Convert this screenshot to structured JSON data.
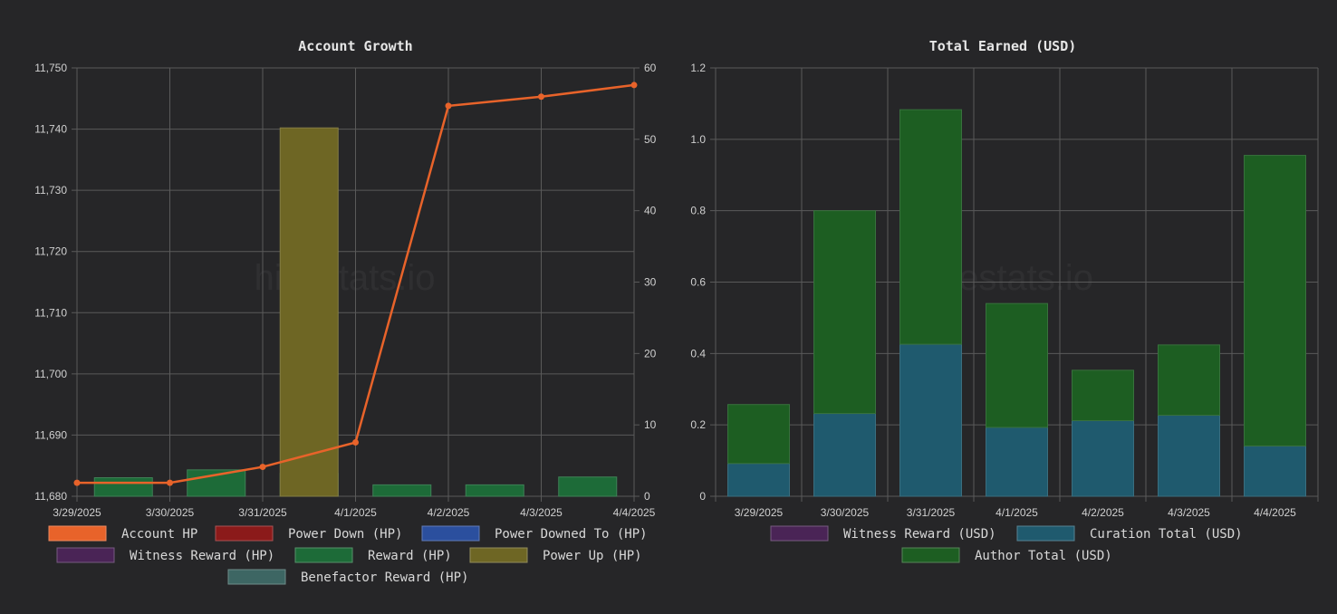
{
  "watermark": "hivestats.io",
  "chart_data": [
    {
      "type": "bar",
      "title": "Account Growth",
      "categories": [
        "3/29/2025",
        "3/30/2025",
        "3/31/2025",
        "4/1/2025",
        "4/2/2025",
        "4/3/2025",
        "4/4/2025"
      ],
      "y_left": {
        "ticks": [
          "11,680",
          "11,690",
          "11,700",
          "11,710",
          "11,720",
          "11,730",
          "11,740",
          "11,750"
        ],
        "range": [
          11680,
          11750
        ]
      },
      "y_right": {
        "ticks": [
          "0",
          "10",
          "20",
          "30",
          "40",
          "50",
          "60"
        ],
        "range": [
          0,
          60
        ]
      },
      "grid": true,
      "legend_position": "bottom",
      "series": [
        {
          "name": "Account HP",
          "type": "line",
          "axis": "left",
          "color": "#e8632a",
          "values": [
            11682.2,
            11682.2,
            11684.8,
            11688.8,
            11743.8,
            11745.3,
            11747.2
          ]
        },
        {
          "name": "Power Down (HP)",
          "type": "bar",
          "axis": "right",
          "color": "#8b1a1a",
          "values": [
            0,
            0,
            0,
            0,
            0,
            0,
            0
          ]
        },
        {
          "name": "Power Downed To (HP)",
          "type": "bar",
          "axis": "right",
          "color": "#2b4f9e",
          "values": [
            0,
            0,
            0,
            0,
            0,
            0,
            0
          ]
        },
        {
          "name": "Witness Reward (HP)",
          "type": "bar",
          "axis": "right",
          "color": "#4a2456",
          "values": [
            0,
            0,
            0,
            0,
            0,
            0,
            0
          ]
        },
        {
          "name": "Reward (HP)",
          "type": "bar",
          "axis": "right",
          "color": "#1d6b38",
          "values": [
            0,
            2.6,
            3.7,
            3.2,
            1.6,
            1.6,
            2.7
          ]
        },
        {
          "name": "Power Up (HP)",
          "type": "bar",
          "axis": "right",
          "color": "#6e6624",
          "values": [
            0,
            0,
            0,
            51.6,
            0,
            0,
            0
          ]
        },
        {
          "name": "Benefactor Reward (HP)",
          "type": "bar",
          "axis": "right",
          "color": "#3d6663",
          "values": [
            0,
            0,
            0,
            0,
            0,
            0,
            0
          ]
        }
      ]
    },
    {
      "type": "bar",
      "stacked": true,
      "title": "Total Earned (USD)",
      "categories": [
        "3/29/2025",
        "3/30/2025",
        "3/31/2025",
        "4/1/2025",
        "4/2/2025",
        "4/3/2025",
        "4/4/2025"
      ],
      "y": {
        "ticks": [
          "0",
          "0.2",
          "0.4",
          "0.6",
          "0.8",
          "1.0",
          "1.2"
        ],
        "range": [
          0,
          1.2
        ]
      },
      "grid": true,
      "legend_position": "bottom",
      "series": [
        {
          "name": "Witness Reward (USD)",
          "color": "#4a2456",
          "values": [
            0,
            0,
            0,
            0,
            0,
            0,
            0
          ]
        },
        {
          "name": "Curation Total (USD)",
          "color": "#1f5a6e",
          "values": [
            0.092,
            0.232,
            0.426,
            0.193,
            0.212,
            0.227,
            0.141
          ]
        },
        {
          "name": "Author Total (USD)",
          "color": "#1d5e22",
          "values": [
            0.165,
            0.568,
            0.657,
            0.347,
            0.141,
            0.197,
            0.814
          ]
        }
      ]
    }
  ]
}
